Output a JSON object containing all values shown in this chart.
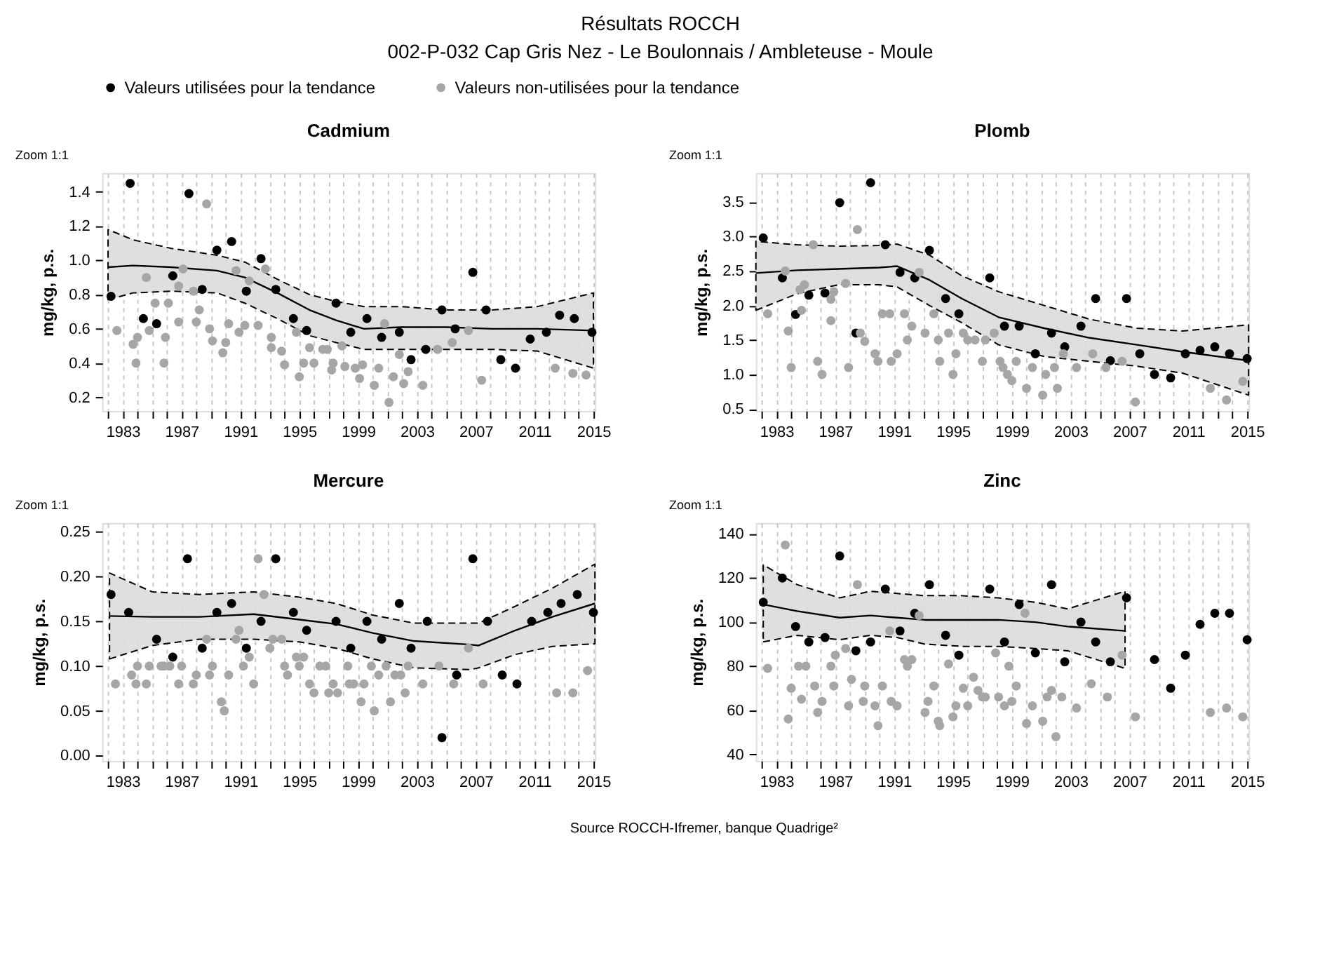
{
  "chart_data": [
    {
      "type": "other",
      "title": "Résultats ROCCH",
      "subtitle": "002-P-032 Cap Gris Nez - Le Boulonnais / Ambleteuse - Moule",
      "annotations": [
        "Source ROCCH-Ifremer, banque Quadrige²"
      ]
    },
    {
      "type": "scatter",
      "title": "Cadmium",
      "ylabel": "mg/kg, p.s.",
      "annotations": [
        "Zoom 1:1"
      ],
      "marker": "circle",
      "grid": "x",
      "legend": "top",
      "xlim": [
        1981.6,
        2015.1
      ],
      "ylim": [
        0.12,
        1.51
      ],
      "xticks": [
        {
          "value": 1982,
          "label": null
        },
        1983,
        {
          "value": 1984,
          "label": null
        },
        {
          "value": 1985,
          "label": null
        },
        {
          "value": 1986,
          "label": null
        },
        1987,
        {
          "value": 1988,
          "label": null
        },
        {
          "value": 1989,
          "label": null
        },
        {
          "value": 1990,
          "label": null
        },
        1991,
        {
          "value": 1992,
          "label": null
        },
        {
          "value": 1993,
          "label": null
        },
        {
          "value": 1994,
          "label": null
        },
        1995,
        {
          "value": 1996,
          "label": null
        },
        {
          "value": 1997,
          "label": null
        },
        {
          "value": 1998,
          "label": null
        },
        1999,
        {
          "value": 2000,
          "label": null
        },
        {
          "value": 2001,
          "label": null
        },
        {
          "value": 2002,
          "label": null
        },
        2003,
        {
          "value": 2004,
          "label": null
        },
        {
          "value": 2005,
          "label": null
        },
        {
          "value": 2006,
          "label": null
        },
        2007,
        {
          "value": 2008,
          "label": null
        },
        {
          "value": 2009,
          "label": null
        },
        {
          "value": 2010,
          "label": null
        },
        2011,
        {
          "value": 2012,
          "label": null
        },
        {
          "value": 2013,
          "label": null
        },
        {
          "value": 2014,
          "label": null
        },
        2015
      ],
      "yticks": [
        0.2,
        0.4,
        0.6,
        0.8,
        {
          "value": 1,
          "label": "1.0"
        },
        1.2,
        1.4
      ],
      "series": [
        {
          "type": "line",
          "marker": "none",
          "color": "#000000",
          "x": [
            1982.0,
            1983.7,
            1986.3,
            1989.4,
            1991.3,
            1993.5,
            1995.7,
            1997.5,
            1999.4,
            2001.9,
            2005.0,
            2008.1,
            2011.2,
            2015.0
          ],
          "values": [
            0.96,
            0.97,
            0.96,
            0.94,
            0.9,
            0.81,
            0.71,
            0.65,
            0.6,
            0.61,
            0.61,
            0.6,
            0.6,
            0.59
          ],
          "lower": [
            0.77,
            0.81,
            0.82,
            0.81,
            0.75,
            0.66,
            0.56,
            0.52,
            0.48,
            0.48,
            0.48,
            0.48,
            0.47,
            0.37
          ],
          "upper": [
            1.18,
            1.12,
            1.07,
            1.03,
            0.99,
            0.89,
            0.8,
            0.76,
            0.73,
            0.73,
            0.71,
            0.71,
            0.73,
            0.81
          ]
        },
        {
          "name": "Valeurs utilisées pour la tendance",
          "color": "#000000",
          "x": [
            1982.2,
            1983.5,
            1984.4,
            1985.3,
            1986.4,
            1987.5,
            1988.4,
            1989.4,
            1990.4,
            1991.4,
            1992.4,
            1993.4,
            1994.6,
            1995.5,
            1997.5,
            1998.5,
            1999.6,
            2000.6,
            2001.8,
            2002.6,
            2003.6,
            2004.7,
            2005.6,
            2006.8,
            2007.7,
            2008.7,
            2009.7,
            2010.7,
            2011.8,
            2012.7,
            2013.7,
            2014.9
          ],
          "values": [
            0.79,
            1.45,
            0.66,
            0.63,
            0.91,
            1.39,
            0.83,
            1.06,
            1.11,
            0.82,
            1.01,
            0.83,
            0.66,
            0.59,
            0.75,
            0.58,
            0.66,
            0.55,
            0.58,
            0.42,
            0.48,
            0.71,
            0.6,
            0.93,
            0.71,
            0.42,
            0.37,
            0.54,
            0.58,
            0.68,
            0.66,
            0.58
          ]
        },
        {
          "name": "Valeurs non-utilisées pour la tendance",
          "color": "#a6a6a6",
          "x": [
            1982.6,
            1983.7,
            1983.9,
            1984.0,
            1984.6,
            1984.8,
            1985.2,
            1985.8,
            1985.9,
            1986.1,
            1986.8,
            1987.1,
            1986.8,
            1988.0,
            1987.8,
            1988.2,
            1988.7,
            1988.9,
            1989.1,
            1989.8,
            1990.0,
            1990.2,
            1990.7,
            1990.9,
            1991.3,
            1991.6,
            1992.2,
            1992.7,
            1993.1,
            1993.1,
            1993.8,
            1994.0,
            1994.8,
            1995.0,
            1995.3,
            1995.7,
            1996.0,
            1996.6,
            1996.9,
            1997.3,
            1997.2,
            1997.9,
            1998.1,
            1998.8,
            1999.1,
            1999.3,
            2000.1,
            2000.4,
            2000.8,
            2001.4,
            2001.1,
            2001.8,
            2002.1,
            2002.4,
            2003.4,
            2004.4,
            2005.4,
            2006.5,
            2007.4,
            2012.4,
            2013.6,
            2014.5
          ],
          "values": [
            0.59,
            0.51,
            0.4,
            0.55,
            0.9,
            0.59,
            0.75,
            0.4,
            0.55,
            0.75,
            0.64,
            0.95,
            0.85,
            0.64,
            0.82,
            0.71,
            1.33,
            0.6,
            0.53,
            0.46,
            0.52,
            0.63,
            0.94,
            0.58,
            0.62,
            0.88,
            0.62,
            0.95,
            0.55,
            0.49,
            0.47,
            0.39,
            0.58,
            0.32,
            0.4,
            0.49,
            0.4,
            0.48,
            0.48,
            0.4,
            0.36,
            0.5,
            0.38,
            0.37,
            0.31,
            0.39,
            0.27,
            0.37,
            0.63,
            0.32,
            0.17,
            0.45,
            0.28,
            0.35,
            0.27,
            0.48,
            0.52,
            0.59,
            0.3,
            0.37,
            0.34,
            0.33
          ]
        }
      ]
    },
    {
      "type": "scatter",
      "title": "Plomb",
      "ylabel": "mg/kg, p.s.",
      "annotations": [
        "Zoom 1:1"
      ],
      "marker": "circle",
      "grid": "x",
      "xlim": [
        1981.6,
        2015.1
      ],
      "ylim": [
        0.47,
        3.92
      ],
      "xticks": [
        {
          "value": 1982,
          "label": null
        },
        1983,
        {
          "value": 1984,
          "label": null
        },
        {
          "value": 1985,
          "label": null
        },
        {
          "value": 1986,
          "label": null
        },
        1987,
        {
          "value": 1988,
          "label": null
        },
        {
          "value": 1989,
          "label": null
        },
        {
          "value": 1990,
          "label": null
        },
        1991,
        {
          "value": 1992,
          "label": null
        },
        {
          "value": 1993,
          "label": null
        },
        {
          "value": 1994,
          "label": null
        },
        1995,
        {
          "value": 1996,
          "label": null
        },
        {
          "value": 1997,
          "label": null
        },
        {
          "value": 1998,
          "label": null
        },
        1999,
        {
          "value": 2000,
          "label": null
        },
        {
          "value": 2001,
          "label": null
        },
        {
          "value": 2002,
          "label": null
        },
        2003,
        {
          "value": 2004,
          "label": null
        },
        {
          "value": 2005,
          "label": null
        },
        {
          "value": 2006,
          "label": null
        },
        2007,
        {
          "value": 2008,
          "label": null
        },
        {
          "value": 2009,
          "label": null
        },
        {
          "value": 2010,
          "label": null
        },
        2011,
        {
          "value": 2012,
          "label": null
        },
        {
          "value": 2013,
          "label": null
        },
        {
          "value": 2014,
          "label": null
        },
        2015
      ],
      "yticks": [
        0.5,
        {
          "value": 1,
          "label": "1.0"
        },
        1.5,
        {
          "value": 2,
          "label": "2.0"
        },
        2.5,
        {
          "value": 3,
          "label": "3.0"
        },
        3.5
      ],
      "series": [
        {
          "type": "line",
          "marker": "none",
          "color": "#000000",
          "x": [
            1981.6,
            1984.4,
            1987.2,
            1990.0,
            1991.2,
            1993.4,
            1995.6,
            1998.1,
            2001.2,
            2004.3,
            2007.5,
            2010.6,
            2015.1
          ],
          "values": [
            2.47,
            2.51,
            2.53,
            2.55,
            2.57,
            2.37,
            2.1,
            1.83,
            1.67,
            1.53,
            1.43,
            1.33,
            1.2
          ],
          "lower": [
            1.93,
            2.17,
            2.3,
            2.3,
            2.27,
            2.0,
            1.75,
            1.43,
            1.26,
            1.19,
            1.12,
            1.02,
            0.7
          ],
          "upper": [
            2.93,
            2.88,
            2.86,
            2.87,
            2.89,
            2.73,
            2.43,
            2.2,
            2.0,
            1.8,
            1.67,
            1.63,
            1.72
          ]
        },
        {
          "color": "#000000",
          "x": [
            1982.1,
            1983.4,
            1984.3,
            1985.2,
            1986.3,
            1987.3,
            1988.4,
            1989.4,
            1990.4,
            1991.4,
            1992.4,
            1993.4,
            1994.5,
            1995.4,
            1997.5,
            1998.5,
            1999.5,
            2000.6,
            2001.7,
            2002.6,
            2003.7,
            2004.7,
            2005.7,
            2006.8,
            2007.7,
            2008.7,
            2009.8,
            2010.8,
            2011.8,
            2012.8,
            2013.8,
            2015.0
          ],
          "values": [
            2.98,
            2.4,
            1.87,
            2.15,
            2.18,
            3.49,
            1.6,
            3.78,
            2.88,
            2.48,
            2.4,
            2.8,
            2.1,
            1.88,
            2.4,
            1.7,
            1.7,
            1.3,
            1.6,
            1.4,
            1.7,
            2.1,
            1.2,
            2.1,
            1.3,
            1.0,
            0.95,
            1.3,
            1.35,
            1.4,
            1.3,
            1.23
          ]
        },
        {
          "color": "#a6a6a6",
          "x": [
            1982.4,
            1983.6,
            1983.8,
            1984.0,
            1984.6,
            1984.9,
            1984.7,
            1985.5,
            1985.8,
            1986.1,
            1986.7,
            1986.7,
            1986.9,
            1987.7,
            1987.9,
            1988.5,
            1988.7,
            1989.0,
            1989.7,
            1989.9,
            1990.2,
            1990.7,
            1990.8,
            1991.2,
            1991.7,
            1991.9,
            1992.2,
            1992.7,
            1993.1,
            1993.7,
            1994.0,
            1994.1,
            1994.7,
            1995.0,
            1995.2,
            1995.7,
            1996.0,
            1996.5,
            1997.0,
            1997.2,
            1997.8,
            1998.2,
            1998.4,
            1998.7,
            1999.0,
            1999.3,
            2000.0,
            2000.4,
            2001.1,
            2001.3,
            2001.9,
            2002.1,
            2002.5,
            2003.4,
            2004.5,
            2005.4,
            2006.5,
            2007.4,
            2012.5,
            2013.6,
            2014.7
          ],
          "values": [
            1.88,
            2.5,
            1.63,
            1.1,
            2.23,
            2.3,
            1.93,
            2.88,
            1.19,
            1.0,
            2.09,
            1.78,
            2.2,
            2.32,
            1.1,
            3.1,
            1.6,
            1.48,
            1.3,
            1.19,
            1.88,
            1.88,
            1.19,
            1.3,
            1.88,
            1.5,
            1.7,
            2.48,
            1.6,
            1.88,
            1.5,
            1.19,
            1.6,
            1.0,
            1.3,
            1.6,
            1.5,
            1.5,
            1.19,
            1.5,
            1.6,
            1.19,
            1.1,
            1.0,
            0.91,
            1.19,
            0.8,
            1.1,
            0.7,
            1.0,
            1.1,
            0.8,
            1.3,
            1.1,
            1.3,
            1.1,
            1.19,
            0.6,
            0.8,
            0.63,
            0.9
          ]
        }
      ]
    },
    {
      "type": "scatter",
      "title": "Mercure",
      "ylabel": "mg/kg, p.s.",
      "annotations": [
        "Zoom 1:1"
      ],
      "marker": "circle",
      "grid": "x",
      "xlim": [
        1981.6,
        2015.1
      ],
      "ylim": [
        -0.006,
        0.26
      ],
      "xticks": [
        {
          "value": 1982,
          "label": null
        },
        1983,
        {
          "value": 1984,
          "label": null
        },
        {
          "value": 1985,
          "label": null
        },
        {
          "value": 1986,
          "label": null
        },
        1987,
        {
          "value": 1988,
          "label": null
        },
        {
          "value": 1989,
          "label": null
        },
        {
          "value": 1990,
          "label": null
        },
        1991,
        {
          "value": 1992,
          "label": null
        },
        {
          "value": 1993,
          "label": null
        },
        {
          "value": 1994,
          "label": null
        },
        1995,
        {
          "value": 1996,
          "label": null
        },
        {
          "value": 1997,
          "label": null
        },
        {
          "value": 1998,
          "label": null
        },
        1999,
        {
          "value": 2000,
          "label": null
        },
        {
          "value": 2001,
          "label": null
        },
        {
          "value": 2002,
          "label": null
        },
        2003,
        {
          "value": 2004,
          "label": null
        },
        {
          "value": 2005,
          "label": null
        },
        {
          "value": 2006,
          "label": null
        },
        2007,
        {
          "value": 2008,
          "label": null
        },
        {
          "value": 2009,
          "label": null
        },
        {
          "value": 2010,
          "label": null
        },
        2011,
        {
          "value": 2012,
          "label": null
        },
        {
          "value": 2013,
          "label": null
        },
        {
          "value": 2014,
          "label": null
        },
        2015
      ],
      "yticks": [
        {
          "value": 0,
          "label": "0.00"
        },
        0.05,
        {
          "value": 0.1,
          "label": "0.10"
        },
        0.15,
        {
          "value": 0.2,
          "label": "0.20"
        },
        0.25
      ],
      "series": [
        {
          "type": "line",
          "marker": "none",
          "color": "#000000",
          "x": [
            1982.1,
            1985.0,
            1988.2,
            1991.9,
            1995.0,
            1997.5,
            2000.0,
            2002.8,
            2006.6,
            2007.2,
            2009.7,
            2012.2,
            2015.1
          ],
          "values": [
            0.156,
            0.155,
            0.155,
            0.158,
            0.152,
            0.147,
            0.137,
            0.128,
            0.124,
            0.123,
            0.14,
            0.155,
            0.17
          ],
          "lower": [
            0.108,
            0.123,
            0.13,
            0.13,
            0.127,
            0.12,
            0.108,
            0.098,
            0.096,
            0.098,
            0.113,
            0.122,
            0.125
          ],
          "upper": [
            0.204,
            0.183,
            0.18,
            0.183,
            0.177,
            0.17,
            0.157,
            0.148,
            0.148,
            0.148,
            0.167,
            0.187,
            0.214
          ]
        },
        {
          "color": "#000000",
          "x": [
            1982.2,
            1983.4,
            1985.3,
            1986.4,
            1987.4,
            1988.4,
            1989.4,
            1990.4,
            1991.4,
            1992.4,
            1993.4,
            1994.6,
            1995.5,
            1997.5,
            1998.5,
            1999.6,
            2000.6,
            2001.8,
            2002.6,
            2003.7,
            2004.7,
            2005.7,
            2006.8,
            2007.8,
            2008.8,
            2009.8,
            2010.8,
            2011.9,
            2012.8,
            2013.9,
            2015.0
          ],
          "values": [
            0.18,
            0.16,
            0.13,
            0.11,
            0.22,
            0.12,
            0.16,
            0.17,
            0.12,
            0.15,
            0.22,
            0.16,
            0.14,
            0.15,
            0.12,
            0.15,
            0.13,
            0.17,
            0.12,
            0.15,
            0.02,
            0.09,
            0.22,
            0.15,
            0.09,
            0.08,
            0.15,
            0.16,
            0.17,
            0.18,
            0.16
          ]
        },
        {
          "color": "#a6a6a6",
          "x": [
            1982.5,
            1983.6,
            1983.9,
            1984.0,
            1984.6,
            1984.8,
            1985.6,
            1985.8,
            1986.2,
            1986.8,
            1987.0,
            1987.8,
            1988.0,
            1988.7,
            1989.1,
            1988.9,
            1989.7,
            1989.9,
            1990.2,
            1990.7,
            1990.9,
            1991.2,
            1991.6,
            1991.9,
            1992.2,
            1992.6,
            1993.0,
            1993.2,
            1993.8,
            1994.0,
            1994.2,
            1994.8,
            1995.0,
            1995.3,
            1995.7,
            1996.0,
            1996.4,
            1996.8,
            1997.0,
            1997.3,
            1997.6,
            1998.3,
            1998.4,
            1998.7,
            1999.2,
            1999.4,
            1999.9,
            2000.1,
            2000.4,
            2000.9,
            2001.2,
            2001.5,
            2001.9,
            2002.2,
            2002.4,
            2003.4,
            2004.5,
            2005.5,
            2006.5,
            2007.5,
            2012.5,
            2013.6,
            2014.6
          ],
          "values": [
            0.08,
            0.09,
            0.08,
            0.1,
            0.08,
            0.1,
            0.1,
            0.1,
            0.1,
            0.08,
            0.1,
            0.08,
            0.09,
            0.13,
            0.1,
            0.09,
            0.06,
            0.05,
            0.09,
            0.13,
            0.14,
            0.1,
            0.11,
            0.08,
            0.22,
            0.18,
            0.12,
            0.13,
            0.13,
            0.1,
            0.09,
            0.11,
            0.1,
            0.11,
            0.08,
            0.07,
            0.1,
            0.1,
            0.07,
            0.08,
            0.07,
            0.1,
            0.08,
            0.08,
            0.06,
            0.08,
            0.1,
            0.05,
            0.09,
            0.1,
            0.06,
            0.09,
            0.09,
            0.07,
            0.1,
            0.08,
            0.1,
            0.08,
            0.12,
            0.08,
            0.07,
            0.07,
            0.095
          ]
        }
      ]
    },
    {
      "type": "scatter",
      "title": "Zinc",
      "ylabel": "mg/kg, p.s.",
      "annotations": [
        "Zoom 1:1"
      ],
      "marker": "circle",
      "grid": "x",
      "xlim": [
        1981.6,
        2015.1
      ],
      "ylim": [
        37,
        145
      ],
      "xticks": [
        {
          "value": 1982,
          "label": null
        },
        1983,
        {
          "value": 1984,
          "label": null
        },
        {
          "value": 1985,
          "label": null
        },
        {
          "value": 1986,
          "label": null
        },
        1987,
        {
          "value": 1988,
          "label": null
        },
        {
          "value": 1989,
          "label": null
        },
        {
          "value": 1990,
          "label": null
        },
        1991,
        {
          "value": 1992,
          "label": null
        },
        {
          "value": 1993,
          "label": null
        },
        {
          "value": 1994,
          "label": null
        },
        1995,
        {
          "value": 1996,
          "label": null
        },
        {
          "value": 1997,
          "label": null
        },
        {
          "value": 1998,
          "label": null
        },
        1999,
        {
          "value": 2000,
          "label": null
        },
        {
          "value": 2001,
          "label": null
        },
        {
          "value": 2002,
          "label": null
        },
        2003,
        {
          "value": 2004,
          "label": null
        },
        {
          "value": 2005,
          "label": null
        },
        {
          "value": 2006,
          "label": null
        },
        2007,
        {
          "value": 2008,
          "label": null
        },
        {
          "value": 2009,
          "label": null
        },
        {
          "value": 2010,
          "label": null
        },
        2011,
        {
          "value": 2012,
          "label": null
        },
        {
          "value": 2013,
          "label": null
        },
        {
          "value": 2014,
          "label": null
        },
        2015
      ],
      "yticks": [
        40,
        60,
        80,
        100,
        120,
        140
      ],
      "series": [
        {
          "type": "line",
          "marker": "none",
          "color": "#000000",
          "x": [
            1982.1,
            1984.4,
            1987.3,
            1989.4,
            1991.2,
            1993.1,
            1995.6,
            1998.1,
            2000.6,
            2002.8,
            2006.7
          ],
          "values": [
            108,
            105,
            102,
            103,
            102,
            101,
            101,
            101,
            100,
            98,
            96
          ],
          "lower": [
            91,
            94,
            92,
            94,
            93,
            90,
            89,
            89,
            88,
            87,
            79
          ],
          "upper": [
            126,
            117,
            111,
            114,
            113,
            112,
            112,
            111,
            109,
            106,
            114
          ]
        },
        {
          "color": "#000000",
          "x": [
            1982.1,
            1983.4,
            1984.3,
            1985.2,
            1986.3,
            1987.3,
            1988.4,
            1989.4,
            1990.4,
            1991.4,
            1992.4,
            1993.4,
            1994.5,
            1995.4,
            1997.5,
            1998.5,
            1999.5,
            2000.6,
            2001.7,
            2002.6,
            2003.7,
            2004.7,
            2005.7,
            2006.8,
            2008.7,
            2009.8,
            2010.8,
            2011.8,
            2012.8,
            2013.8,
            2015.0
          ],
          "values": [
            109,
            120,
            98,
            91,
            93,
            130,
            87,
            91,
            115,
            96,
            104,
            117,
            94,
            85,
            115,
            91,
            108,
            86,
            117,
            82,
            100,
            91,
            82,
            111,
            83,
            70,
            85,
            99,
            104,
            104,
            92
          ]
        },
        {
          "color": "#a6a6a6",
          "x": [
            1982.4,
            1983.6,
            1983.8,
            1984.0,
            1984.5,
            1985.0,
            1984.7,
            1985.6,
            1985.8,
            1986.1,
            1986.7,
            1986.9,
            1987.0,
            1987.7,
            1987.9,
            1988.1,
            1988.5,
            1988.9,
            1989.0,
            1989.7,
            1989.9,
            1990.2,
            1990.7,
            1990.8,
            1991.2,
            1991.7,
            1991.9,
            1992.2,
            1992.7,
            1993.1,
            1993.3,
            1993.7,
            1994.0,
            1994.1,
            1994.7,
            1995.0,
            1995.2,
            1995.7,
            1996.0,
            1996.4,
            1996.7,
            1997.0,
            1997.2,
            1997.9,
            1998.1,
            1998.5,
            1998.8,
            1999.0,
            1999.3,
            1999.9,
            2000.0,
            2000.4,
            2001.1,
            2001.4,
            2001.7,
            2002.0,
            2002.4,
            2003.4,
            2004.4,
            2005.5,
            2006.5,
            2007.4,
            2012.5,
            2013.6,
            2014.7
          ],
          "values": [
            79,
            135,
            56,
            70,
            80,
            80,
            65,
            71,
            59,
            64,
            80,
            71,
            85,
            88,
            62,
            74,
            117,
            64,
            71,
            62,
            53,
            71,
            96,
            64,
            62,
            83,
            80,
            83,
            103,
            59,
            64,
            71,
            55,
            53,
            81,
            57,
            62,
            70,
            62,
            75,
            69,
            66,
            66,
            86,
            66,
            62,
            80,
            64,
            71,
            104,
            54,
            62,
            55,
            66,
            69,
            48,
            66,
            61,
            72,
            66,
            85,
            57,
            59,
            61,
            57
          ]
        }
      ]
    }
  ]
}
